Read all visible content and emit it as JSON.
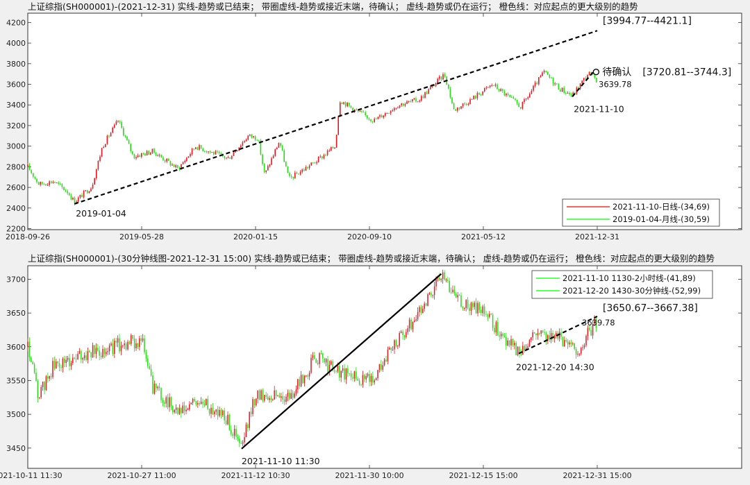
{
  "chart_data": [
    {
      "type": "line",
      "title": "上证综指(SH000001)-(2021-12-31)  实线-趋势或已结束；  带圈虚线-趋势或接近末端，待确认；  虚线-趋势或仍在运行；  橙色线：对应起点的更大级别的趋势",
      "x_tick_labels": [
        "2018-09-26",
        "2019-05-28",
        "2020-01-15",
        "2020-09-10",
        "2021-05-12",
        "2021-12-31"
      ],
      "y_ticks": [
        2200,
        2400,
        2600,
        2800,
        3000,
        3200,
        3400,
        3600,
        3800,
        4000,
        4200
      ],
      "ylim": [
        2190,
        4290
      ],
      "price_path": [
        {
          "x": "2018-09-26",
          "y": 2800
        },
        {
          "x": "2018-10-20",
          "y": 2630
        },
        {
          "x": "2018-11-20",
          "y": 2660
        },
        {
          "x": "2018-12-20",
          "y": 2560
        },
        {
          "x": "2019-01-04",
          "y": 2460
        },
        {
          "x": "2019-02-10",
          "y": 2610
        },
        {
          "x": "2019-03-05",
          "y": 3000
        },
        {
          "x": "2019-04-08",
          "y": 3250
        },
        {
          "x": "2019-05-10",
          "y": 2900
        },
        {
          "x": "2019-06-20",
          "y": 2950
        },
        {
          "x": "2019-08-10",
          "y": 2780
        },
        {
          "x": "2019-09-15",
          "y": 3000
        },
        {
          "x": "2019-11-20",
          "y": 2880
        },
        {
          "x": "2019-12-31",
          "y": 3100
        },
        {
          "x": "2020-01-20",
          "y": 3080
        },
        {
          "x": "2020-02-03",
          "y": 2720
        },
        {
          "x": "2020-03-05",
          "y": 3050
        },
        {
          "x": "2020-03-25",
          "y": 2680
        },
        {
          "x": "2020-05-20",
          "y": 2850
        },
        {
          "x": "2020-06-30",
          "y": 3000
        },
        {
          "x": "2020-07-10",
          "y": 3450
        },
        {
          "x": "2020-08-10",
          "y": 3350
        },
        {
          "x": "2020-09-20",
          "y": 3250
        },
        {
          "x": "2020-11-10",
          "y": 3400
        },
        {
          "x": "2020-12-25",
          "y": 3450
        },
        {
          "x": "2021-02-18",
          "y": 3700
        },
        {
          "x": "2021-03-10",
          "y": 3350
        },
        {
          "x": "2021-04-15",
          "y": 3450
        },
        {
          "x": "2021-05-31",
          "y": 3600
        },
        {
          "x": "2021-07-28",
          "y": 3380
        },
        {
          "x": "2021-09-13",
          "y": 3720
        },
        {
          "x": "2021-10-15",
          "y": 3560
        },
        {
          "x": "2021-11-10",
          "y": 3490
        },
        {
          "x": "2021-12-13",
          "y": 3710
        },
        {
          "x": "2021-12-31",
          "y": 3640
        }
      ],
      "trend_lines": [
        {
          "style": "dashed",
          "from": {
            "x": "2019-01-04",
            "y": 2440
          },
          "to": {
            "x": "2021-12-31",
            "y": 4120
          }
        },
        {
          "style": "dashed",
          "from": {
            "x": "2021-11-10",
            "y": 3480
          },
          "to": {
            "x": "2021-12-23",
            "y": 3720
          }
        }
      ],
      "annotations": {
        "target_range": "[3994.77--4421.1]",
        "pending_label": "待确认",
        "pending_range": "[3720.81--3744.3]",
        "last_value": "3639.78",
        "start_label": "2019-01-04",
        "end_label": "2021-11-10"
      },
      "legend": {
        "position": "bottom-right",
        "entries": [
          {
            "label": "2021-11-10-日线-(34,69)",
            "color": "#ff0000"
          },
          {
            "label": "2019-01-04-月线-(30,59)",
            "color": "#00ff00"
          }
        ]
      }
    },
    {
      "type": "line",
      "title": "上证综指(SH000001)-(30分钟线图-2021-12-31 15:00)  实线-趋势或已结束；  带圈虚线-趋势或接近末端，待确认；  虚线-趋势或仍在运行；  橙色线：对应起点的更大级别的趋势",
      "x_tick_labels": [
        "2021-10-11 11:30",
        "2021-10-27 11:00",
        "2021-11-12 10:30",
        "2021-11-30 10:00",
        "2021-12-15 15:00",
        "2021-12-31 15:00"
      ],
      "y_ticks": [
        3450,
        3500,
        3550,
        3600,
        3650,
        3700
      ],
      "ylim": [
        3420,
        3720
      ],
      "price_path": [
        {
          "x": "2021-10-11 11:30",
          "y": 3600
        },
        {
          "x": "2021-10-13",
          "y": 3525
        },
        {
          "x": "2021-10-15",
          "y": 3570
        },
        {
          "x": "2021-10-20",
          "y": 3590
        },
        {
          "x": "2021-10-25",
          "y": 3605
        },
        {
          "x": "2021-10-27 11:00",
          "y": 3610
        },
        {
          "x": "2021-10-29",
          "y": 3540
        },
        {
          "x": "2021-11-02",
          "y": 3500
        },
        {
          "x": "2021-11-04",
          "y": 3520
        },
        {
          "x": "2021-11-08",
          "y": 3500
        },
        {
          "x": "2021-11-10 11:30",
          "y": 3450
        },
        {
          "x": "2021-11-12 10:30",
          "y": 3530
        },
        {
          "x": "2021-11-18",
          "y": 3525
        },
        {
          "x": "2021-11-22",
          "y": 3585
        },
        {
          "x": "2021-11-26",
          "y": 3560
        },
        {
          "x": "2021-11-30 10:00",
          "y": 3550
        },
        {
          "x": "2021-12-03",
          "y": 3590
        },
        {
          "x": "2021-12-07",
          "y": 3650
        },
        {
          "x": "2021-12-10",
          "y": 3705
        },
        {
          "x": "2021-12-13",
          "y": 3665
        },
        {
          "x": "2021-12-15 15:00",
          "y": 3650
        },
        {
          "x": "2021-12-20 14:30",
          "y": 3590
        },
        {
          "x": "2021-12-23",
          "y": 3625
        },
        {
          "x": "2021-12-27",
          "y": 3610
        },
        {
          "x": "2021-12-29",
          "y": 3595
        },
        {
          "x": "2021-12-31 15:00",
          "y": 3640
        }
      ],
      "trend_lines": [
        {
          "style": "solid",
          "from": {
            "x": "2021-11-10 11:30",
            "y": 3449
          },
          "to": {
            "x": "2021-12-10",
            "y": 3708
          }
        },
        {
          "style": "dashed",
          "from": {
            "x": "2021-12-20 14:30",
            "y": 3590
          },
          "to": {
            "x": "2021-12-31 15:00",
            "y": 3645
          }
        }
      ],
      "annotations": {
        "target_range": "[3650.67--3667.38]",
        "last_value": "3639.78",
        "start_label": "2021-11-10 11:30",
        "end_label": "2021-12-20 14:30"
      },
      "legend": {
        "position": "top-right",
        "entries": [
          {
            "label": "2021-11-10 1130-2小时线-(41,89)",
            "color": "#00ff00"
          },
          {
            "label": "2021-12-20 1430-30分钟线-(52,99)",
            "color": "#00ff00"
          }
        ]
      }
    }
  ]
}
